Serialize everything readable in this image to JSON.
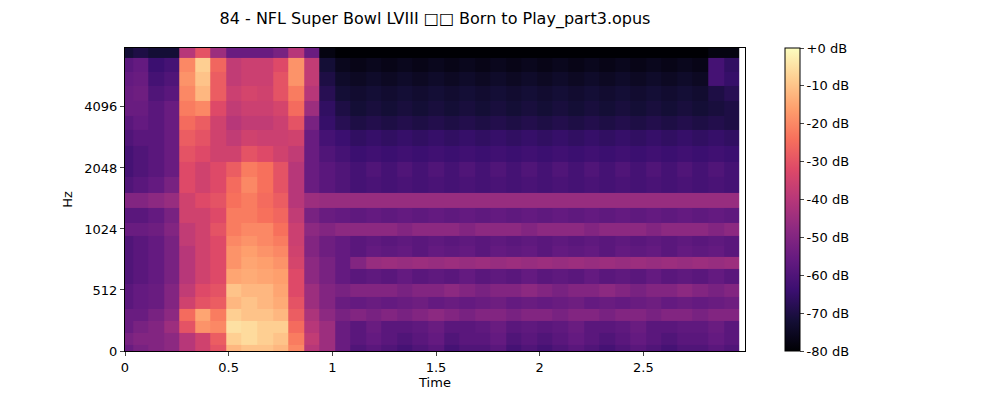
{
  "chart_data": {
    "type": "heatmap",
    "title": "84 - NFL Super Bowl LVIII □□ Born to Play_part3.opus",
    "x_label": "Time",
    "y_label": "Hz",
    "log": "y",
    "color": "magma",
    "xlim": [
      0,
      2.99
    ],
    "ylim": [
      0,
      8000
    ],
    "xticks": [
      0,
      0.5,
      1,
      1.5,
      2,
      2.5
    ],
    "yticks": [
      0,
      512,
      1024,
      2048,
      4096
    ],
    "zlim": [
      -80,
      0
    ],
    "zticks": [
      {
        "value": 0,
        "label": "+0 dB"
      },
      {
        "value": -10,
        "label": "-10 dB"
      },
      {
        "value": -20,
        "label": "-20 dB"
      },
      {
        "value": -30,
        "label": "-30 dB"
      },
      {
        "value": -40,
        "label": "-40 dB"
      },
      {
        "value": -50,
        "label": "-50 dB"
      },
      {
        "value": -60,
        "label": "-60 dB"
      },
      {
        "value": -70,
        "label": "-70 dB"
      },
      {
        "value": -80,
        "label": "-80 dB"
      }
    ],
    "x": [
      0,
      0.075,
      0.15,
      0.225,
      0.3,
      0.375,
      0.45,
      0.525,
      0.6,
      0.675,
      0.75,
      0.825,
      0.9,
      0.975,
      1.05,
      1.125,
      1.2,
      1.275,
      1.35,
      1.425,
      1.5,
      1.575,
      1.65,
      1.725,
      1.8,
      1.875,
      1.95,
      2.025,
      2.1,
      2.175,
      2.25,
      2.325,
      2.4,
      2.475,
      2.55,
      2.625,
      2.7,
      2.775,
      2.85,
      2.925
    ],
    "y": [
      0,
      100,
      200,
      300,
      400,
      500,
      600,
      700,
      800,
      900,
      1000,
      1200,
      1400,
      1700,
      2000,
      2400,
      2900,
      3400,
      4000,
      4800,
      5600,
      6600,
      7800
    ],
    "cells": [
      [
        -55,
        -52,
        -50,
        -48,
        -40,
        -35,
        -30,
        -12,
        -10,
        -10,
        -12,
        -20,
        -40,
        -45,
        -55,
        -60,
        -58,
        -60,
        -62,
        -60,
        -58,
        -62,
        -60,
        -60,
        -58,
        -62,
        -60,
        -62,
        -60,
        -58,
        -60,
        -62,
        -60,
        -58,
        -60,
        -62,
        -60,
        -60,
        -58,
        -60
      ],
      [
        -52,
        -50,
        -50,
        -48,
        -40,
        -35,
        -28,
        -8,
        -6,
        -8,
        -10,
        -22,
        -38,
        -45,
        -55,
        -58,
        -56,
        -58,
        -60,
        -58,
        -56,
        -60,
        -58,
        -58,
        -56,
        -60,
        -58,
        -60,
        -58,
        -56,
        -58,
        -60,
        -58,
        -56,
        -58,
        -60,
        -58,
        -58,
        -56,
        -58
      ],
      [
        -55,
        -52,
        -50,
        -45,
        -30,
        -18,
        -20,
        -5,
        -6,
        -8,
        -8,
        -25,
        -40,
        -45,
        -55,
        -58,
        -55,
        -58,
        -58,
        -57,
        -55,
        -58,
        -58,
        -57,
        -55,
        -58,
        -57,
        -58,
        -57,
        -55,
        -58,
        -58,
        -57,
        -55,
        -58,
        -58,
        -57,
        -57,
        -55,
        -58
      ],
      [
        -55,
        -55,
        -52,
        -48,
        -25,
        -15,
        -22,
        -8,
        -10,
        -10,
        -12,
        -28,
        -42,
        -48,
        -52,
        -50,
        -52,
        -50,
        -52,
        -50,
        -48,
        -50,
        -52,
        -50,
        -50,
        -52,
        -50,
        -50,
        -52,
        -50,
        -50,
        -52,
        -50,
        -50,
        -52,
        -50,
        -50,
        -52,
        -50,
        -50
      ],
      [
        -58,
        -56,
        -55,
        -50,
        -35,
        -30,
        -28,
        -12,
        -10,
        -12,
        -14,
        -30,
        -45,
        -50,
        -55,
        -56,
        -55,
        -56,
        -55,
        -54,
        -56,
        -55,
        -56,
        -55,
        -54,
        -56,
        -55,
        -56,
        -55,
        -54,
        -56,
        -55,
        -56,
        -55,
        -54,
        -56,
        -55,
        -56,
        -55,
        -54
      ],
      [
        -58,
        -56,
        -55,
        -50,
        -38,
        -32,
        -30,
        -10,
        -12,
        -12,
        -15,
        -32,
        -45,
        -50,
        -52,
        -50,
        -50,
        -50,
        -52,
        -50,
        -50,
        -48,
        -50,
        -52,
        -50,
        -50,
        -48,
        -50,
        -52,
        -50,
        -50,
        -48,
        -50,
        -52,
        -50,
        -50,
        -48,
        -50,
        -52,
        -50
      ],
      [
        -60,
        -58,
        -56,
        -52,
        -40,
        -35,
        -32,
        -15,
        -14,
        -15,
        -16,
        -32,
        -48,
        -52,
        -56,
        -58,
        -57,
        -58,
        -56,
        -58,
        -57,
        -58,
        -56,
        -58,
        -57,
        -58,
        -56,
        -58,
        -57,
        -58,
        -56,
        -58,
        -57,
        -58,
        -56,
        -58,
        -57,
        -58,
        -56,
        -58
      ],
      [
        -60,
        -58,
        -56,
        -52,
        -40,
        -35,
        -32,
        -18,
        -15,
        -16,
        -18,
        -34,
        -48,
        -52,
        -56,
        -50,
        -46,
        -45,
        -46,
        -45,
        -46,
        -45,
        -46,
        -45,
        -46,
        -45,
        -46,
        -45,
        -46,
        -45,
        -46,
        -45,
        -46,
        -45,
        -46,
        -45,
        -46,
        -45,
        -46,
        -45
      ],
      [
        -60,
        -58,
        -56,
        -52,
        -40,
        -35,
        -32,
        -18,
        -16,
        -18,
        -20,
        -35,
        -50,
        -54,
        -56,
        -58,
        -56,
        -57,
        -56,
        -58,
        -56,
        -57,
        -56,
        -58,
        -56,
        -57,
        -56,
        -58,
        -56,
        -57,
        -56,
        -58,
        -56,
        -57,
        -56,
        -58,
        -56,
        -57,
        -56,
        -58
      ],
      [
        -60,
        -58,
        -56,
        -52,
        -38,
        -35,
        -32,
        -20,
        -18,
        -20,
        -22,
        -36,
        -50,
        -54,
        -56,
        -58,
        -57,
        -58,
        -57,
        -58,
        -57,
        -58,
        -57,
        -58,
        -57,
        -58,
        -57,
        -58,
        -57,
        -58,
        -57,
        -58,
        -57,
        -58,
        -57,
        -58,
        -57,
        -58,
        -57,
        -58
      ],
      [
        -55,
        -55,
        -54,
        -50,
        -38,
        -35,
        -30,
        -22,
        -20,
        -20,
        -24,
        -36,
        -48,
        -50,
        -48,
        -48,
        -48,
        -48,
        -50,
        -48,
        -48,
        -48,
        -50,
        -48,
        -48,
        -48,
        -50,
        -48,
        -48,
        -48,
        -50,
        -48,
        -48,
        -48,
        -50,
        -48,
        -48,
        -48,
        -50,
        -48
      ],
      [
        -58,
        -58,
        -56,
        -52,
        -35,
        -35,
        -32,
        -22,
        -22,
        -24,
        -26,
        -38,
        -52,
        -55,
        -56,
        -57,
        -56,
        -57,
        -56,
        -57,
        -56,
        -57,
        -56,
        -57,
        -56,
        -57,
        -56,
        -57,
        -56,
        -57,
        -56,
        -57,
        -56,
        -57,
        -56,
        -57,
        -56,
        -57,
        -56,
        -57
      ],
      [
        -50,
        -50,
        -48,
        -46,
        -35,
        -32,
        -30,
        -24,
        -22,
        -25,
        -28,
        -40,
        -45,
        -46,
        -46,
        -46,
        -46,
        -46,
        -46,
        -46,
        -46,
        -46,
        -46,
        -46,
        -46,
        -46,
        -46,
        -46,
        -46,
        -46,
        -46,
        -46,
        -46,
        -46,
        -46,
        -46,
        -46,
        -46,
        -46,
        -46
      ],
      [
        -60,
        -58,
        -56,
        -52,
        -32,
        -35,
        -32,
        -25,
        -20,
        -24,
        -30,
        -40,
        -55,
        -58,
        -60,
        -62,
        -61,
        -62,
        -61,
        -62,
        -61,
        -62,
        -61,
        -62,
        -61,
        -62,
        -61,
        -62,
        -61,
        -62,
        -61,
        -62,
        -61,
        -62,
        -61,
        -62,
        -61,
        -62,
        -61,
        -62
      ],
      [
        -62,
        -60,
        -58,
        -55,
        -32,
        -35,
        -32,
        -28,
        -22,
        -24,
        -30,
        -40,
        -55,
        -58,
        -60,
        -62,
        -60,
        -62,
        -60,
        -62,
        -60,
        -62,
        -60,
        -62,
        -60,
        -62,
        -60,
        -62,
        -60,
        -62,
        -60,
        -62,
        -60,
        -62,
        -60,
        -62,
        -60,
        -62,
        -60,
        -62
      ],
      [
        -62,
        -60,
        -58,
        -55,
        -30,
        -32,
        -35,
        -35,
        -30,
        -32,
        -35,
        -38,
        -55,
        -60,
        -62,
        -64,
        -63,
        -64,
        -63,
        -64,
        -63,
        -64,
        -63,
        -64,
        -63,
        -64,
        -63,
        -64,
        -63,
        -64,
        -63,
        -64,
        -63,
        -64,
        -63,
        -64,
        -63,
        -64,
        -63,
        -64
      ],
      [
        -60,
        -58,
        -58,
        -55,
        -28,
        -30,
        -35,
        -38,
        -35,
        -36,
        -36,
        -35,
        -55,
        -62,
        -64,
        -66,
        -65,
        -66,
        -65,
        -66,
        -65,
        -66,
        -65,
        -66,
        -65,
        -66,
        -65,
        -66,
        -65,
        -66,
        -65,
        -66,
        -65,
        -66,
        -65,
        -66,
        -65,
        -66,
        -65,
        -66
      ],
      [
        -58,
        -56,
        -58,
        -55,
        -25,
        -28,
        -35,
        -40,
        -38,
        -38,
        -36,
        -30,
        -52,
        -65,
        -68,
        -70,
        -69,
        -70,
        -69,
        -70,
        -69,
        -70,
        -69,
        -70,
        -69,
        -70,
        -69,
        -70,
        -69,
        -70,
        -69,
        -70,
        -69,
        -70,
        -69,
        -70,
        -69,
        -70,
        -69,
        -70
      ],
      [
        -55,
        -55,
        -58,
        -55,
        -22,
        -20,
        -32,
        -38,
        -36,
        -36,
        -34,
        -25,
        -45,
        -66,
        -70,
        -72,
        -71,
        -72,
        -71,
        -72,
        -71,
        -72,
        -71,
        -72,
        -71,
        -72,
        -71,
        -72,
        -71,
        -72,
        -71,
        -72,
        -71,
        -72,
        -71,
        -72,
        -71,
        -72,
        -71,
        -70
      ],
      [
        -55,
        -54,
        -60,
        -58,
        -20,
        -12,
        -28,
        -36,
        -34,
        -35,
        -30,
        -22,
        -40,
        -68,
        -72,
        -73,
        -72,
        -73,
        -72,
        -73,
        -72,
        -73,
        -72,
        -73,
        -72,
        -73,
        -72,
        -73,
        -72,
        -73,
        -72,
        -73,
        -72,
        -73,
        -72,
        -73,
        -72,
        -73,
        -70,
        -68
      ],
      [
        -56,
        -55,
        -62,
        -60,
        -18,
        -10,
        -28,
        -38,
        -36,
        -36,
        -30,
        -18,
        -38,
        -70,
        -74,
        -75,
        -74,
        -75,
        -74,
        -75,
        -74,
        -75,
        -74,
        -75,
        -74,
        -75,
        -74,
        -75,
        -74,
        -75,
        -74,
        -75,
        -74,
        -75,
        -74,
        -75,
        -74,
        -75,
        -62,
        -65
      ],
      [
        -58,
        -56,
        -64,
        -62,
        -20,
        -8,
        -26,
        -38,
        -36,
        -36,
        -32,
        -18,
        -38,
        -72,
        -76,
        -77,
        -76,
        -77,
        -76,
        -77,
        -76,
        -77,
        -76,
        -77,
        -76,
        -77,
        -76,
        -77,
        -76,
        -77,
        -76,
        -77,
        -76,
        -77,
        -76,
        -77,
        -76,
        -77,
        -62,
        -66
      ],
      [
        -72,
        -70,
        -72,
        -72,
        -40,
        -30,
        -45,
        -55,
        -55,
        -55,
        -52,
        -40,
        -55,
        -78,
        -80,
        -80,
        -80,
        -80,
        -80,
        -80,
        -80,
        -80,
        -80,
        -80,
        -80,
        -80,
        -80,
        -80,
        -80,
        -80,
        -80,
        -80,
        -80,
        -80,
        -80,
        -80,
        -80,
        -80,
        -78,
        -78
      ]
    ]
  }
}
